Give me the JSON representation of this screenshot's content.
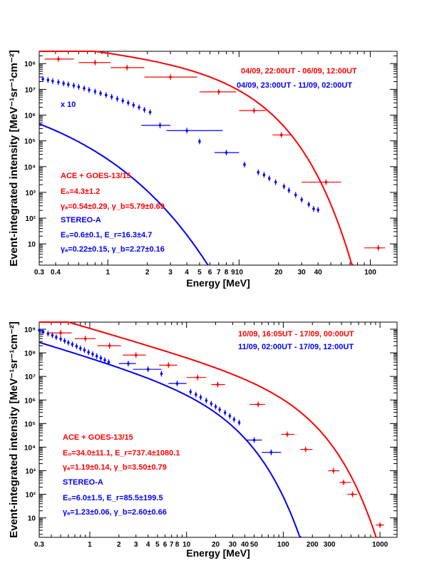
{
  "figure": {
    "ylabel": "Event-integrated intensity [MeV⁻¹sr⁻¹cm⁻²]",
    "xlabel": "Energy [MeV]"
  },
  "colors": {
    "red": "#ff0000",
    "blue": "#0000ff"
  },
  "chart_data": [
    {
      "type": "scatter",
      "xscale": "log",
      "yscale": "log",
      "xlim": [
        0.3,
        160
      ],
      "ylim": [
        1.5,
        300000000
      ],
      "xticks": [
        {
          "v": 0.3,
          "t": "0.3"
        },
        {
          "v": 0.4,
          "t": "0.4"
        },
        {
          "v": 1,
          "t": "1"
        },
        {
          "v": 2,
          "t": "2"
        },
        {
          "v": 3,
          "t": "3"
        },
        {
          "v": 4,
          "t": "4"
        },
        {
          "v": 5,
          "t": "5"
        },
        {
          "v": 6,
          "t": "6"
        },
        {
          "v": 7,
          "t": "7"
        },
        {
          "v": 8,
          "t": "8"
        },
        {
          "v": 9,
          "t": "9"
        },
        {
          "v": 10,
          "t": "10"
        },
        {
          "v": 20,
          "t": "20"
        },
        {
          "v": 30,
          "t": "30"
        },
        {
          "v": 40,
          "t": "40"
        },
        {
          "v": 100,
          "t": "100"
        }
      ],
      "yticks": [
        {
          "v": 10,
          "t": "10"
        },
        {
          "v": 100,
          "t": "10²"
        },
        {
          "v": 1000,
          "t": "10³"
        },
        {
          "v": 10000,
          "t": "10⁴"
        },
        {
          "v": 100000,
          "t": "10⁵"
        },
        {
          "v": 1000000,
          "t": "10⁶"
        },
        {
          "v": 10000000,
          "t": "10⁷"
        },
        {
          "v": 100000000,
          "t": "10⁸"
        }
      ],
      "legend": [
        "04/09, 22:00UT - 06/09, 12:00UT",
        "04/09, 23:00UT - 11/09, 02:00UT"
      ],
      "scale_note": "x 10",
      "params": {
        "ace_title": "ACE + GOES-13/15",
        "ace_l1": "E₀=4.3±1.2",
        "ace_l2": "γₐ=0.54±0.29,  γ_b=5.79±0.69",
        "stereo_title": "STEREO-A",
        "stereo_l1": "E₀=0.6±0.1,  E_r=16.3±4.7",
        "stereo_l2": "γₐ=0.22±0.15,  γ_b=2.27±0.16"
      },
      "series": [
        {
          "color": "red",
          "points": [
            {
              "x": 0.42,
              "y": 150000000,
              "xlo": 0.33,
              "xhi": 0.55
            },
            {
              "x": 0.8,
              "y": 110000000,
              "xlo": 0.6,
              "xhi": 1.05
            },
            {
              "x": 1.4,
              "y": 70000000,
              "xlo": 1.05,
              "xhi": 1.9
            },
            {
              "x": 3,
              "y": 30000000,
              "xlo": 1.9,
              "xhi": 4.8
            },
            {
              "x": 7,
              "y": 8000000,
              "xlo": 5,
              "xhi": 9.5
            },
            {
              "x": 13,
              "y": 1500000,
              "xlo": 10,
              "xhi": 16
            },
            {
              "x": 21,
              "y": 170000,
              "xlo": 18,
              "xhi": 25
            },
            {
              "x": 46,
              "y": 2500,
              "xlo": 30,
              "xhi": 60
            },
            {
              "x": 115,
              "y": 7,
              "xlo": 90,
              "xhi": 130
            }
          ],
          "fit": {
            "model": "x10_broken",
            "A": 320000000,
            "E0": 4.3,
            "ga": 0.54,
            "gb": 5.79
          }
        },
        {
          "color": "blue",
          "points": [
            {
              "x": 0.32,
              "y": 25000000
            },
            {
              "x": 0.35,
              "y": 23000000
            },
            {
              "x": 0.38,
              "y": 21000000
            },
            {
              "x": 0.42,
              "y": 19000000
            },
            {
              "x": 0.46,
              "y": 17000000
            },
            {
              "x": 0.5,
              "y": 15500000
            },
            {
              "x": 0.55,
              "y": 14000000
            },
            {
              "x": 0.6,
              "y": 12500000
            },
            {
              "x": 0.66,
              "y": 11000000
            },
            {
              "x": 0.72,
              "y": 9500000
            },
            {
              "x": 0.8,
              "y": 8200000
            },
            {
              "x": 0.88,
              "y": 7000000
            },
            {
              "x": 0.97,
              "y": 6000000
            },
            {
              "x": 1.07,
              "y": 5100000
            },
            {
              "x": 1.18,
              "y": 4300000
            },
            {
              "x": 1.3,
              "y": 3600000
            },
            {
              "x": 1.43,
              "y": 3000000
            },
            {
              "x": 1.57,
              "y": 2450000
            },
            {
              "x": 1.73,
              "y": 2000000
            },
            {
              "x": 1.9,
              "y": 1600000
            },
            {
              "x": 2.1,
              "y": 1300000
            },
            {
              "x": 2.5,
              "y": 400000,
              "xlo": 1.8,
              "xhi": 3
            },
            {
              "x": 4,
              "y": 250000,
              "xlo": 2.8,
              "xhi": 7.5
            },
            {
              "x": 5,
              "y": 95000
            },
            {
              "x": 8,
              "y": 35000,
              "xlo": 6.5,
              "xhi": 10
            },
            {
              "x": 11,
              "y": 12000
            },
            {
              "x": 14,
              "y": 6000
            },
            {
              "x": 15.5,
              "y": 4800
            },
            {
              "x": 17,
              "y": 3500
            },
            {
              "x": 19,
              "y": 2500
            },
            {
              "x": 22,
              "y": 1700
            },
            {
              "x": 24,
              "y": 1200
            },
            {
              "x": 27,
              "y": 800
            },
            {
              "x": 30,
              "y": 520
            },
            {
              "x": 34,
              "y": 340
            },
            {
              "x": 37,
              "y": 230
            },
            {
              "x": 40,
              "y": 210
            }
          ],
          "fit": {
            "model": "powexp",
            "A": 12000000,
            "ga": 0.22,
            "Er": 0.6,
            "gb": 2.27
          }
        }
      ]
    },
    {
      "type": "scatter",
      "xscale": "log",
      "yscale": "log",
      "xlim": [
        0.3,
        1500
      ],
      "ylim": [
        1.5,
        2000000000
      ],
      "xticks": [
        {
          "v": 0.3,
          "t": "0.3"
        },
        {
          "v": 1,
          "t": "1"
        },
        {
          "v": 2,
          "t": "2"
        },
        {
          "v": 3,
          "t": "3"
        },
        {
          "v": 4,
          "t": "4"
        },
        {
          "v": 5,
          "t": "5"
        },
        {
          "v": 6,
          "t": "6"
        },
        {
          "v": 7,
          "t": "7"
        },
        {
          "v": 8,
          "t": "8"
        },
        {
          "v": 10,
          "t": "10"
        },
        {
          "v": 20,
          "t": "20"
        },
        {
          "v": 30,
          "t": "30"
        },
        {
          "v": 40,
          "t": "40"
        },
        {
          "v": 50,
          "t": "50"
        },
        {
          "v": 100,
          "t": "100"
        },
        {
          "v": 200,
          "t": "200"
        },
        {
          "v": 300,
          "t": "300"
        },
        {
          "v": 1000,
          "t": "1000"
        }
      ],
      "yticks": [
        {
          "v": 10,
          "t": "10"
        },
        {
          "v": 100,
          "t": "10²"
        },
        {
          "v": 1000,
          "t": "10³"
        },
        {
          "v": 10000,
          "t": "10⁴"
        },
        {
          "v": 100000,
          "t": "10⁵"
        },
        {
          "v": 1000000,
          "t": "10⁶"
        },
        {
          "v": 10000000,
          "t": "10⁷"
        },
        {
          "v": 100000000,
          "t": "10⁸"
        },
        {
          "v": 1000000000,
          "t": "10⁹"
        }
      ],
      "legend": [
        "10/09, 16:05UT - 17/09, 00:00UT",
        "11/09, 02:00UT - 17/09, 12:00UT"
      ],
      "params": {
        "ace_title": "ACE + GOES-13/15",
        "ace_l1": "E₀=34.0±11.1,  E_r=737.4±1080.1",
        "ace_l2": "γₐ=1.19±0.14,  γ_b=3.50±0.79",
        "stereo_title": "STEREO-A",
        "stereo_l1": "E₀=6.0±1.5,  E_r=85.5±199.5",
        "stereo_l2": "γₐ=1.23±0.06,  γ_b=2.60±0.66"
      },
      "series": [
        {
          "color": "red",
          "points": [
            {
              "x": 0.5,
              "y": 700000000,
              "xlo": 0.38,
              "xhi": 0.65
            },
            {
              "x": 0.9,
              "y": 400000000,
              "xlo": 0.7,
              "xhi": 1.15
            },
            {
              "x": 1.6,
              "y": 200000000,
              "xlo": 1.2,
              "xhi": 2.1
            },
            {
              "x": 3,
              "y": 80000000,
              "xlo": 2.2,
              "xhi": 3.8
            },
            {
              "x": 6.5,
              "y": 30000000,
              "xlo": 5.2,
              "xhi": 8
            },
            {
              "x": 13,
              "y": 9000000,
              "xlo": 10,
              "xhi": 16
            },
            {
              "x": 21,
              "y": 4500000,
              "xlo": 18,
              "xhi": 25
            },
            {
              "x": 55,
              "y": 650000,
              "xlo": 45,
              "xhi": 65
            },
            {
              "x": 110,
              "y": 35000,
              "xlo": 95,
              "xhi": 130
            },
            {
              "x": 170,
              "y": 8000,
              "xlo": 150,
              "xhi": 200
            },
            {
              "x": 330,
              "y": 1000,
              "xlo": 290,
              "xhi": 380
            },
            {
              "x": 420,
              "y": 320,
              "xlo": 380,
              "xhi": 500
            },
            {
              "x": 520,
              "y": 100,
              "xlo": 460,
              "xhi": 580
            },
            {
              "x": 1000,
              "y": 5,
              "xlo": 900,
              "xhi": 1100
            }
          ],
          "fit": {
            "model": "three",
            "A": 1100000000,
            "ga": 1.19,
            "E0": 34,
            "Er": 737.4,
            "gb": 3.5
          }
        },
        {
          "color": "blue",
          "points": [
            {
              "x": 0.3,
              "y": 900000000
            },
            {
              "x": 0.33,
              "y": 780000000
            },
            {
              "x": 0.37,
              "y": 650000000
            },
            {
              "x": 0.41,
              "y": 550000000
            },
            {
              "x": 0.45,
              "y": 460000000
            },
            {
              "x": 0.5,
              "y": 390000000
            },
            {
              "x": 0.55,
              "y": 320000000
            },
            {
              "x": 0.6,
              "y": 270000000
            },
            {
              "x": 0.66,
              "y": 230000000
            },
            {
              "x": 0.73,
              "y": 190000000
            },
            {
              "x": 0.8,
              "y": 155000000
            },
            {
              "x": 0.88,
              "y": 130000000
            },
            {
              "x": 0.97,
              "y": 105000000
            },
            {
              "x": 1.07,
              "y": 88000000
            },
            {
              "x": 1.18,
              "y": 72000000
            },
            {
              "x": 1.3,
              "y": 60000000
            },
            {
              "x": 1.43,
              "y": 49000000
            },
            {
              "x": 1.57,
              "y": 40000000
            },
            {
              "x": 2.5,
              "y": 35000000,
              "xlo": 2,
              "xhi": 3
            },
            {
              "x": 4,
              "y": 20000000,
              "xlo": 2.8,
              "xhi": 5.5
            },
            {
              "x": 5.5,
              "y": 13000000
            },
            {
              "x": 8,
              "y": 5000000,
              "xlo": 6.5,
              "xhi": 10
            },
            {
              "x": 11,
              "y": 2200000
            },
            {
              "x": 12.5,
              "y": 1700000
            },
            {
              "x": 14,
              "y": 1300000
            },
            {
              "x": 16,
              "y": 950000
            },
            {
              "x": 18,
              "y": 700000
            },
            {
              "x": 20,
              "y": 520000
            },
            {
              "x": 22,
              "y": 390000
            },
            {
              "x": 25,
              "y": 290000
            },
            {
              "x": 28,
              "y": 210000
            },
            {
              "x": 31,
              "y": 150000
            },
            {
              "x": 35,
              "y": 110000
            },
            {
              "x": 50,
              "y": 20000,
              "xlo": 42,
              "xhi": 60
            },
            {
              "x": 75,
              "y": 6000,
              "xlo": 60,
              "xhi": 95
            }
          ],
          "fit": {
            "model": "three",
            "A": 65000000,
            "ga": 1.23,
            "E0": 6,
            "Er": 85.5,
            "gb": 2.6
          }
        }
      ]
    }
  ]
}
